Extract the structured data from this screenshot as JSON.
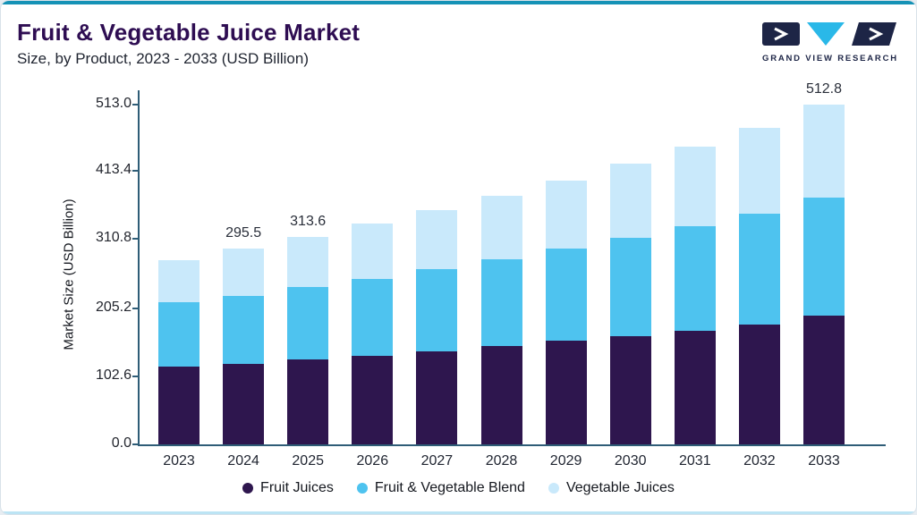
{
  "header": {
    "title": "Fruit & Vegetable Juice Market",
    "subtitle": "Size, by Product, 2023 - 2033 (USD Billion)"
  },
  "logo": {
    "text": "GRAND VIEW RESEARCH",
    "navy": "#1d2546",
    "cyan": "#2ab8e8"
  },
  "accents": {
    "top_bar": "#1592b6",
    "bottom_bar": "#bce4f4",
    "axis": "#2f5d77",
    "title_color": "#2e0d52"
  },
  "chart_data": {
    "type": "bar",
    "stacked": true,
    "title": "Fruit & Vegetable Juice Market",
    "subtitle": "Size, by Product, 2023 - 2033 (USD Billion)",
    "ylabel": "Market Size (USD Billion)",
    "ylim": [
      0,
      513.0
    ],
    "yticks": [
      0.0,
      102.6,
      205.2,
      310.8,
      413.4,
      513.0
    ],
    "ytick_labels": [
      "0.0",
      "102.6",
      "205.2",
      "310.8",
      "413.4",
      "513.0"
    ],
    "categories": [
      "2023",
      "2024",
      "2025",
      "2026",
      "2027",
      "2028",
      "2029",
      "2030",
      "2031",
      "2032",
      "2033"
    ],
    "series": [
      {
        "name": "Fruit Juices",
        "color": "#2e164e",
        "values": [
          116.8,
          122.0,
          128.0,
          134.0,
          141.0,
          148.0,
          156.0,
          164.0,
          172.0,
          181.0,
          194.0
        ]
      },
      {
        "name": "Fruit & Vegetable Blend",
        "color": "#4ec3ef",
        "values": [
          97.4,
          102.0,
          109.0,
          116.0,
          123.0,
          131.0,
          139.0,
          148.0,
          157.0,
          167.0,
          179.0
        ]
      },
      {
        "name": "Vegetable Juices",
        "color": "#c9e9fb",
        "values": [
          64.0,
          71.5,
          76.6,
          83.0,
          89.7,
          96.6,
          103.9,
          111.6,
          120.9,
          129.8,
          139.8
        ]
      }
    ],
    "totals": [
      278.2,
      295.5,
      313.6,
      333.0,
      353.7,
      375.6,
      398.9,
      423.6,
      449.9,
      477.8,
      512.8
    ],
    "bar_labels": [
      "",
      "295.5",
      "313.6",
      "",
      "",
      "",
      "",
      "",
      "",
      "",
      "512.8"
    ],
    "legend_position": "bottom",
    "grid": false
  }
}
